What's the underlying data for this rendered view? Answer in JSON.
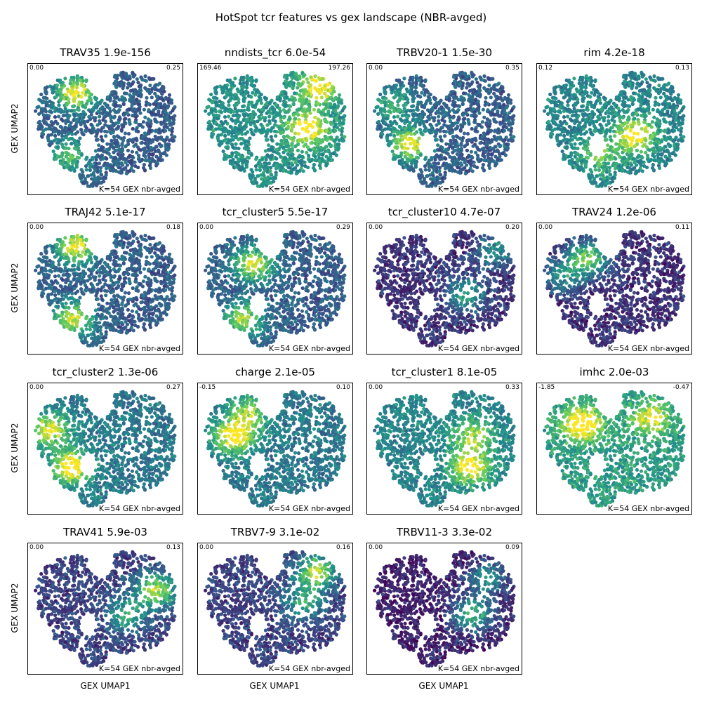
{
  "title": "HotSpot tcr features vs gex landscape (NBR-avged)",
  "xlabel": "GEX UMAP1",
  "ylabel": "GEX UMAP2",
  "colormap": [
    "#440154",
    "#3b528b",
    "#21918c",
    "#5ec962",
    "#fde725"
  ],
  "chart_data": [
    {
      "type": "scatter",
      "title": "TRAV35 1.9e-156",
      "vmin": "0.00",
      "vmax": "0.25",
      "note": "K=54 GEX nbr-avged",
      "hotspots": [
        [
          0.3,
          0.2,
          1.0
        ],
        [
          0.25,
          0.72,
          0.6
        ]
      ],
      "base": 0.3
    },
    {
      "type": "scatter",
      "title": "nndists_tcr 6.0e-54",
      "vmin": "169.46",
      "vmax": "197.26",
      "note": "K=54 GEX nbr-avged",
      "hotspots": [
        [
          0.72,
          0.5,
          0.9
        ],
        [
          0.8,
          0.15,
          0.8
        ]
      ],
      "base": 0.5
    },
    {
      "type": "scatter",
      "title": "TRBV20-1 1.5e-30",
      "vmin": "0.00",
      "vmax": "0.35",
      "note": "K=54 GEX nbr-avged",
      "hotspots": [
        [
          0.26,
          0.62,
          1.0
        ],
        [
          0.15,
          0.3,
          0.5
        ]
      ],
      "base": 0.3
    },
    {
      "type": "scatter",
      "title": "rim 4.2e-18",
      "vmin": "0.12",
      "vmax": "0.13",
      "note": "K=54 GEX nbr-avged",
      "hotspots": [
        [
          0.65,
          0.55,
          0.9
        ],
        [
          0.4,
          0.7,
          0.5
        ]
      ],
      "base": 0.45
    },
    {
      "type": "scatter",
      "title": "TRAJ42 5.1e-17",
      "vmin": "0.00",
      "vmax": "0.18",
      "note": "K=54 GEX nbr-avged",
      "hotspots": [
        [
          0.3,
          0.15,
          1.0
        ],
        [
          0.28,
          0.75,
          0.9
        ]
      ],
      "base": 0.3
    },
    {
      "type": "scatter",
      "title": "tcr_cluster5 5.5e-17",
      "vmin": "0.00",
      "vmax": "0.29",
      "note": "K=54 GEX nbr-avged",
      "hotspots": [
        [
          0.35,
          0.3,
          0.9
        ],
        [
          0.28,
          0.75,
          0.8
        ]
      ],
      "base": 0.3
    },
    {
      "type": "scatter",
      "title": "tcr_cluster10 4.7e-07",
      "vmin": "0.00",
      "vmax": "0.20",
      "note": "K=54 GEX nbr-avged",
      "hotspots": [
        [
          0.65,
          0.55,
          0.6
        ],
        [
          0.85,
          0.2,
          0.5
        ]
      ],
      "base": 0.15
    },
    {
      "type": "scatter",
      "title": "TRAV24 1.2e-06",
      "vmin": "0.00",
      "vmax": "0.11",
      "note": "K=54 GEX nbr-avged",
      "hotspots": [
        [
          0.32,
          0.25,
          0.9
        ],
        [
          0.15,
          0.4,
          0.5
        ]
      ],
      "base": 0.15
    },
    {
      "type": "scatter",
      "title": "tcr_cluster2 1.3e-06",
      "vmin": "0.00",
      "vmax": "0.27",
      "note": "K=54 GEX nbr-avged",
      "hotspots": [
        [
          0.27,
          0.65,
          1.0
        ],
        [
          0.12,
          0.35,
          0.8
        ]
      ],
      "base": 0.4
    },
    {
      "type": "scatter",
      "title": "charge 2.1e-05",
      "vmin": "-0.15",
      "vmax": "0.10",
      "note": "K=54 GEX nbr-avged",
      "hotspots": [
        [
          0.22,
          0.4,
          1.0
        ],
        [
          0.32,
          0.2,
          0.6
        ]
      ],
      "base": 0.4
    },
    {
      "type": "scatter",
      "title": "tcr_cluster1 8.1e-05",
      "vmin": "0.00",
      "vmax": "0.33",
      "note": "K=54 GEX nbr-avged",
      "hotspots": [
        [
          0.68,
          0.65,
          0.9
        ],
        [
          0.7,
          0.4,
          0.6
        ]
      ],
      "base": 0.45
    },
    {
      "type": "scatter",
      "title": "imhc 2.0e-03",
      "vmin": "-1.85",
      "vmax": "-0.47",
      "note": "K=54 GEX nbr-avged",
      "hotspots": [
        [
          0.28,
          0.3,
          0.9
        ],
        [
          0.75,
          0.25,
          0.6
        ]
      ],
      "base": 0.55
    },
    {
      "type": "scatter",
      "title": "TRAV41 5.9e-03",
      "vmin": "0.00",
      "vmax": "0.13",
      "note": "K=54 GEX nbr-avged",
      "hotspots": [
        [
          0.85,
          0.35,
          1.0
        ],
        [
          0.65,
          0.55,
          0.6
        ]
      ],
      "base": 0.2
    },
    {
      "type": "scatter",
      "title": "TRBV7-9 3.1e-02",
      "vmin": "0.00",
      "vmax": "0.16",
      "note": "K=54 GEX nbr-avged",
      "hotspots": [
        [
          0.78,
          0.2,
          1.0
        ],
        [
          0.7,
          0.45,
          0.6
        ]
      ],
      "base": 0.2
    },
    {
      "type": "scatter",
      "title": "TRBV11-3 3.3e-02",
      "vmin": "0.00",
      "vmax": "0.09",
      "note": "K=54 GEX nbr-avged",
      "hotspots": [
        [
          0.7,
          0.55,
          0.8
        ],
        [
          0.8,
          0.25,
          0.6
        ]
      ],
      "base": 0.1
    }
  ]
}
